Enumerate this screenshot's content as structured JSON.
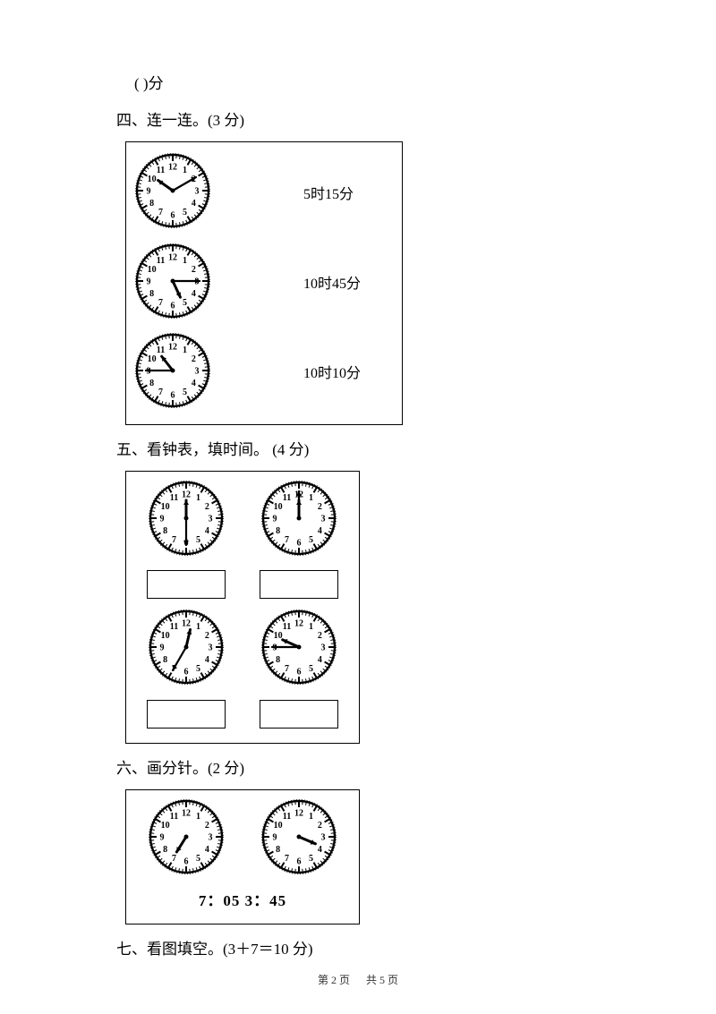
{
  "topBlank": {
    "prefix": "(",
    "space": "        ",
    "suffix": ")分"
  },
  "q4": {
    "heading": "四、连一连。(3 分)",
    "rows": [
      {
        "label": "5时15分",
        "clock": {
          "hourAngle": 305,
          "minuteAngle": 60
        }
      },
      {
        "label": "10时45分",
        "clock": {
          "hourAngle": 155,
          "minuteAngle": 90
        }
      },
      {
        "label": "10时10分",
        "clock": {
          "hourAngle": 322,
          "minuteAngle": 270
        }
      }
    ]
  },
  "q5": {
    "heading": "五、看钟表，填时间。  (4 分)",
    "clocks": [
      {
        "hourAngle": 0,
        "minuteAngle": 180
      },
      {
        "hourAngle": 0,
        "minuteAngle": 0
      },
      {
        "hourAngle": 13,
        "minuteAngle": 210
      },
      {
        "hourAngle": 294,
        "minuteAngle": 270
      }
    ]
  },
  "q6": {
    "heading": "六、画分针。(2 分)",
    "clocks": [
      {
        "hourAngle": 212,
        "minuteAngle": null
      },
      {
        "hourAngle": 113,
        "minuteAngle": null
      }
    ],
    "timesLine": "7：05  3：45"
  },
  "q7": {
    "heading": "七、看图填空。(3＋7＝10 分)"
  },
  "footer": {
    "left": "第 2 页",
    "right": "共 5 页"
  },
  "clockStyle": {
    "size": 88,
    "faceStroke": "#000000",
    "faceStrokeWidth": 2.4,
    "tickColor": "#000000",
    "numberFontSize": 10,
    "hourHandLen": 20,
    "minuteHandLen": 30,
    "hourHandWidth": 3.0,
    "minuteHandWidth": 2.2
  }
}
